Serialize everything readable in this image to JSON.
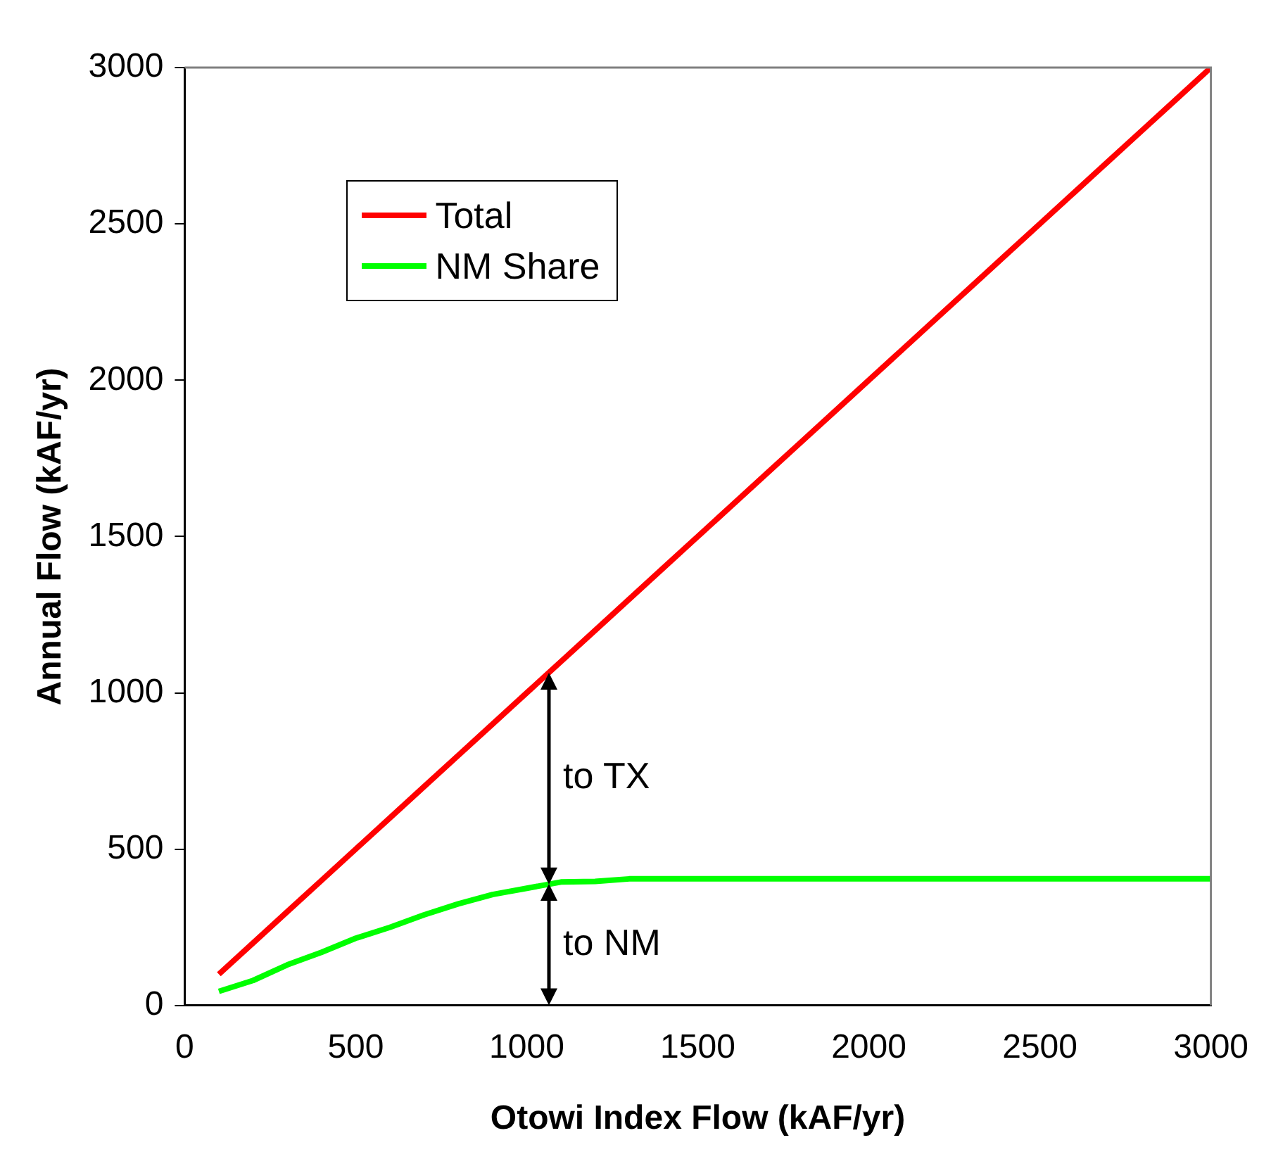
{
  "chart_data": {
    "type": "line",
    "xlabel": "Otowi Index Flow (kAF/yr)",
    "ylabel": "Annual Flow (kAF/yr)",
    "xlim": [
      0,
      3000
    ],
    "xticks": [
      0,
      500,
      1000,
      1500,
      2000,
      2500,
      3000
    ],
    "ylim": [
      0,
      3000
    ],
    "yticks": [
      0,
      500,
      1000,
      1500,
      2000,
      2500,
      3000
    ],
    "legend": "top left",
    "grid": false,
    "marker": "none",
    "line_style": "solid",
    "series": [
      {
        "name": "Total",
        "color": "#ff0000",
        "x": [
          100,
          200,
          300,
          400,
          500,
          600,
          700,
          800,
          900,
          1000,
          1100,
          1200,
          1300,
          1400,
          1500,
          1600,
          1700,
          1800,
          1900,
          2000,
          2100,
          2200,
          2300,
          2400,
          2500,
          2600,
          2700,
          2800,
          2900,
          3000
        ],
        "values": [
          100,
          200,
          300,
          400,
          500,
          600,
          700,
          800,
          900,
          1000,
          1100,
          1200,
          1300,
          1400,
          1500,
          1600,
          1700,
          1800,
          1900,
          2000,
          2100,
          2200,
          2300,
          2400,
          2500,
          2600,
          2700,
          2800,
          2900,
          3000
        ]
      },
      {
        "name": "NM Share",
        "color": "#00ff00",
        "x": [
          100,
          200,
          300,
          400,
          500,
          600,
          700,
          800,
          900,
          1000,
          1100,
          1200,
          1300,
          3000
        ],
        "values": [
          45,
          80,
          130,
          170,
          215,
          250,
          290,
          325,
          355,
          375,
          395,
          397,
          405,
          405
        ]
      }
    ],
    "annotations": [
      "to TX",
      "to NM"
    ]
  }
}
